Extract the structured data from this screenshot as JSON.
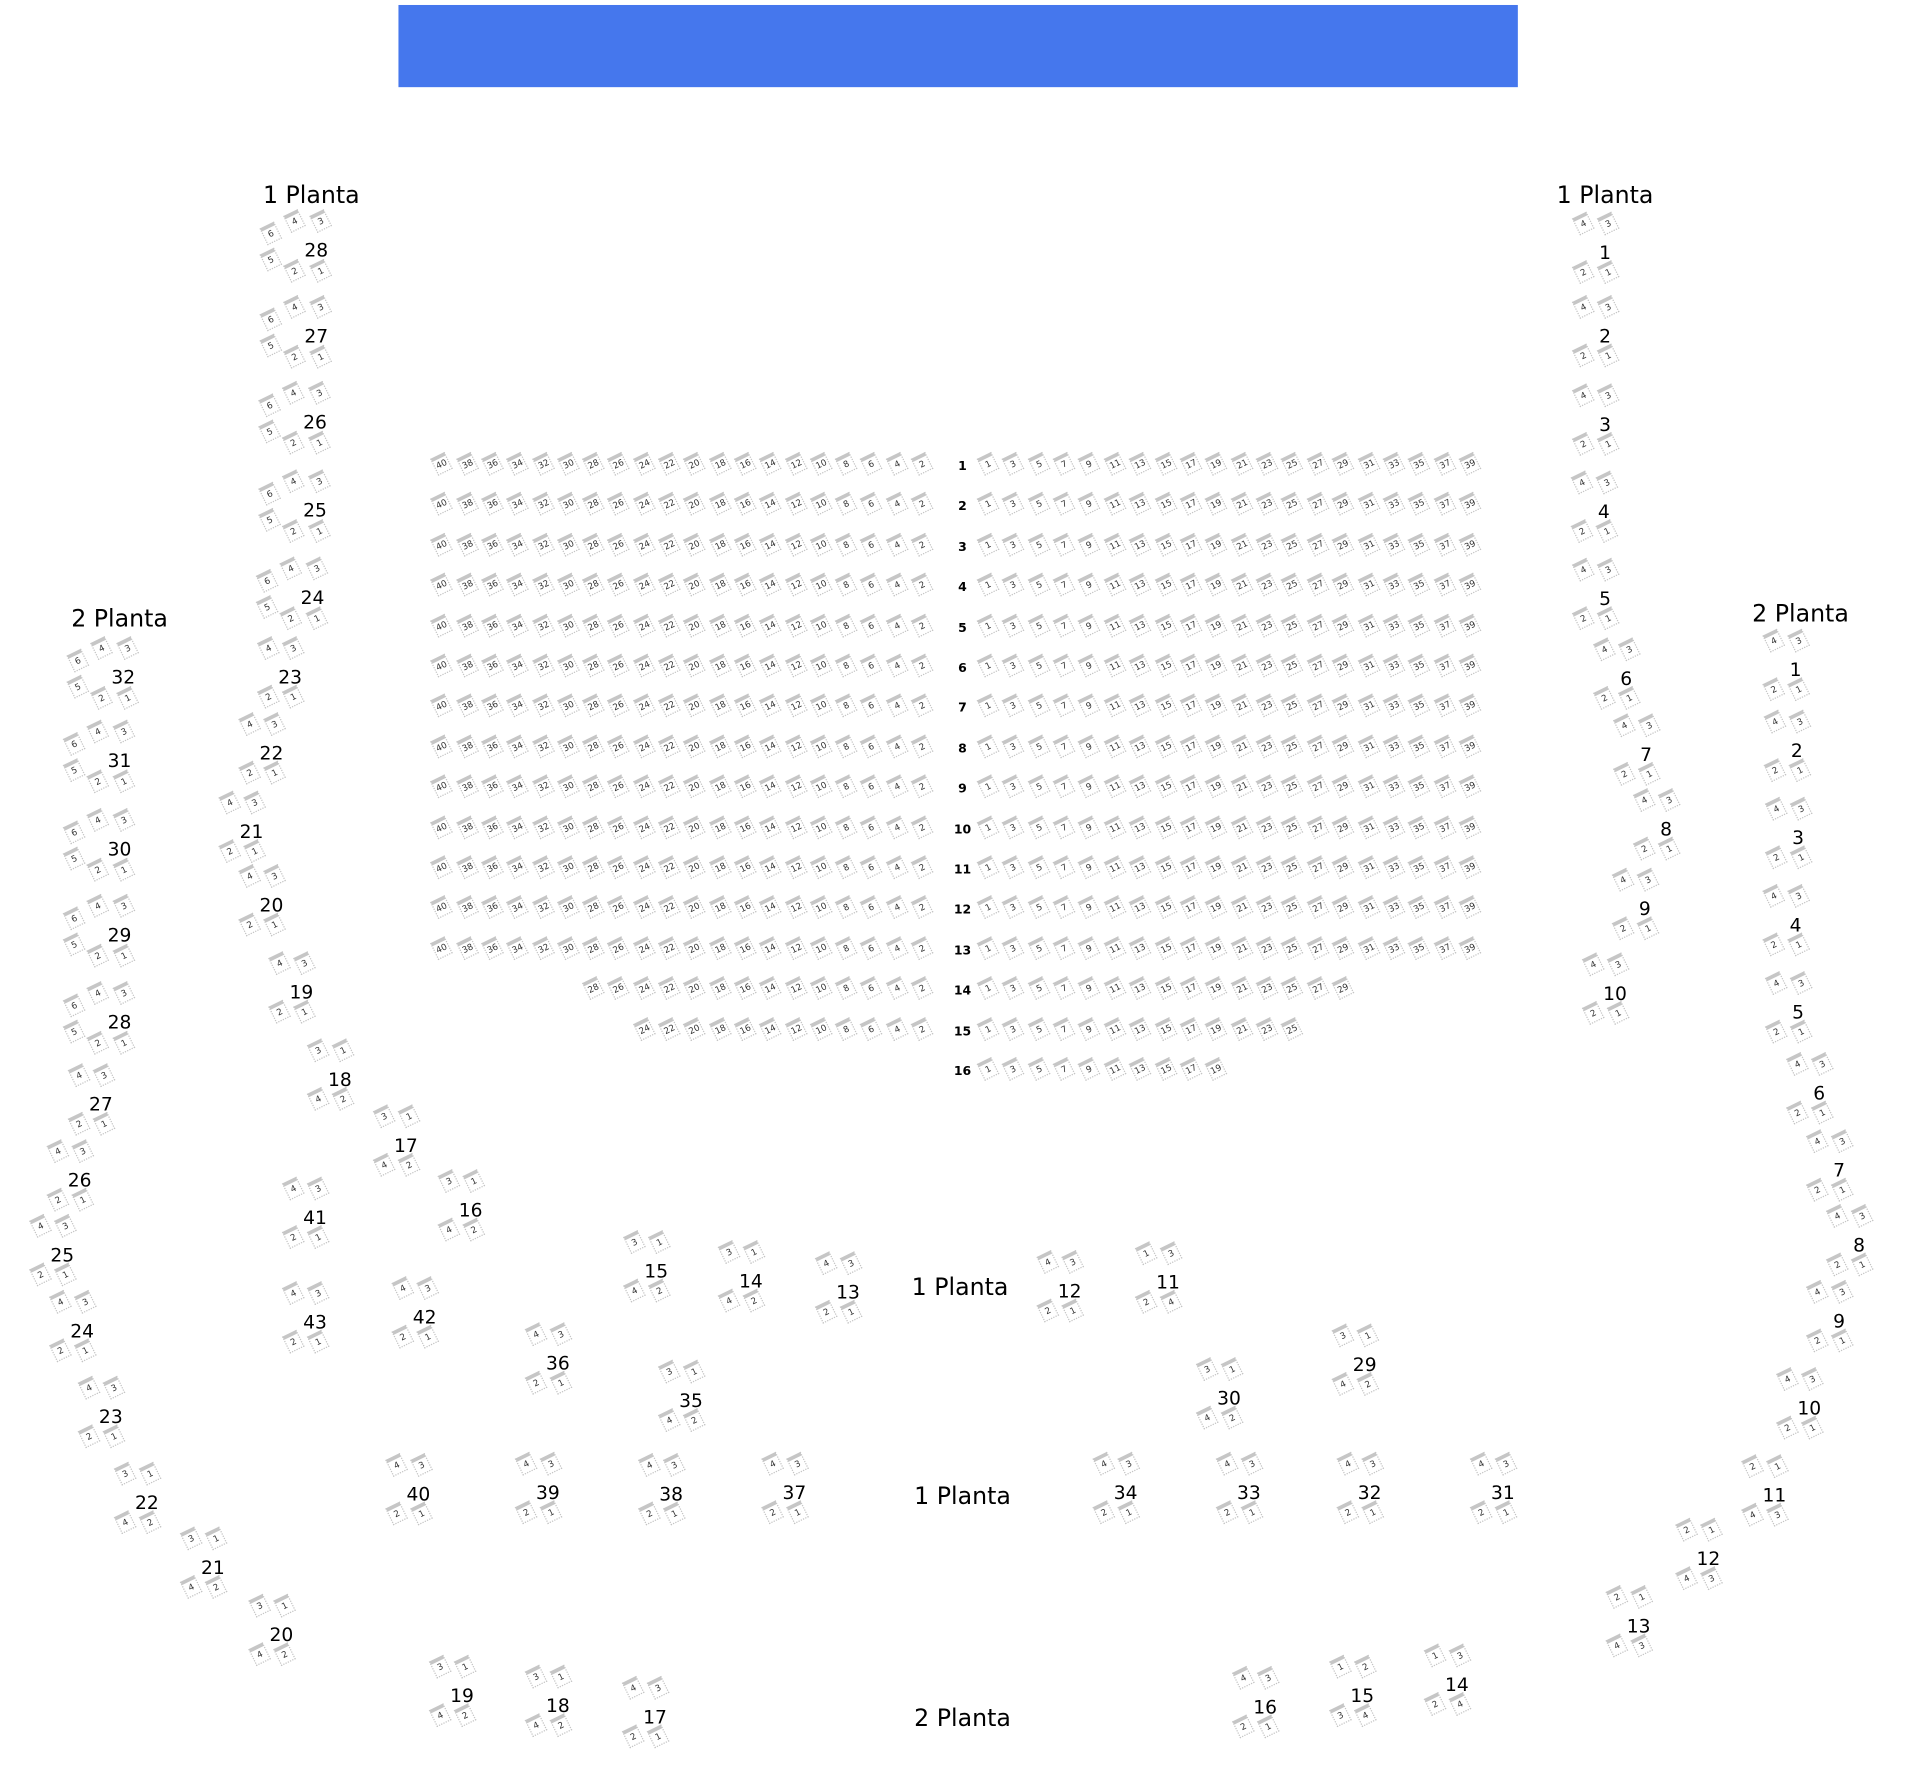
{
  "stage": {
    "color": "#4577ed"
  },
  "planta_labels": [
    "1 Planta",
    "1 Planta",
    "2 Planta",
    "2 Planta",
    "1 Planta",
    "1 Planta",
    "2 Planta"
  ],
  "orchestra": {
    "rows": [
      {
        "label": "1",
        "left": [
          "40",
          "38",
          "36",
          "34",
          "32",
          "30",
          "28",
          "26",
          "24",
          "22",
          "20",
          "18",
          "16",
          "14",
          "12",
          "10",
          "8",
          "6",
          "4",
          "2"
        ],
        "right": [
          "1",
          "3",
          "5",
          "7",
          "9",
          "11",
          "13",
          "15",
          "17",
          "19",
          "21",
          "23",
          "25",
          "27",
          "29",
          "31",
          "33",
          "35",
          "37",
          "39"
        ]
      },
      {
        "label": "2",
        "left": [
          "40",
          "38",
          "36",
          "34",
          "32",
          "30",
          "28",
          "26",
          "24",
          "22",
          "20",
          "18",
          "16",
          "14",
          "12",
          "10",
          "8",
          "6",
          "4",
          "2"
        ],
        "right": [
          "1",
          "3",
          "5",
          "7",
          "9",
          "11",
          "13",
          "15",
          "17",
          "19",
          "21",
          "23",
          "25",
          "27",
          "29",
          "31",
          "33",
          "35",
          "37",
          "39"
        ]
      },
      {
        "label": "3",
        "left": [
          "40",
          "38",
          "36",
          "34",
          "32",
          "30",
          "28",
          "26",
          "24",
          "22",
          "20",
          "18",
          "16",
          "14",
          "12",
          "10",
          "8",
          "6",
          "4",
          "2"
        ],
        "right": [
          "1",
          "3",
          "5",
          "7",
          "9",
          "11",
          "13",
          "15",
          "17",
          "19",
          "21",
          "23",
          "25",
          "27",
          "29",
          "31",
          "33",
          "35",
          "37",
          "39"
        ]
      },
      {
        "label": "4",
        "left": [
          "40",
          "38",
          "36",
          "34",
          "32",
          "30",
          "28",
          "26",
          "24",
          "22",
          "20",
          "18",
          "16",
          "14",
          "12",
          "10",
          "8",
          "6",
          "4",
          "2"
        ],
        "right": [
          "1",
          "3",
          "5",
          "7",
          "9",
          "11",
          "13",
          "15",
          "17",
          "19",
          "21",
          "23",
          "25",
          "27",
          "29",
          "31",
          "33",
          "35",
          "37",
          "39"
        ]
      },
      {
        "label": "5",
        "left": [
          "40",
          "38",
          "36",
          "34",
          "32",
          "30",
          "28",
          "26",
          "24",
          "22",
          "20",
          "18",
          "16",
          "14",
          "12",
          "10",
          "8",
          "6",
          "4",
          "2"
        ],
        "right": [
          "1",
          "3",
          "5",
          "7",
          "9",
          "11",
          "13",
          "15",
          "17",
          "19",
          "21",
          "23",
          "25",
          "27",
          "29",
          "31",
          "33",
          "35",
          "37",
          "39"
        ]
      },
      {
        "label": "6",
        "left": [
          "40",
          "38",
          "36",
          "34",
          "32",
          "30",
          "28",
          "26",
          "24",
          "22",
          "20",
          "18",
          "16",
          "14",
          "12",
          "10",
          "8",
          "6",
          "4",
          "2"
        ],
        "right": [
          "1",
          "3",
          "5",
          "7",
          "9",
          "11",
          "13",
          "15",
          "17",
          "19",
          "21",
          "23",
          "25",
          "27",
          "29",
          "31",
          "33",
          "35",
          "37",
          "39"
        ]
      },
      {
        "label": "7",
        "left": [
          "40",
          "38",
          "36",
          "34",
          "32",
          "30",
          "28",
          "26",
          "24",
          "22",
          "20",
          "18",
          "16",
          "14",
          "12",
          "10",
          "8",
          "6",
          "4",
          "2"
        ],
        "right": [
          "1",
          "3",
          "5",
          "7",
          "9",
          "11",
          "13",
          "15",
          "17",
          "19",
          "21",
          "23",
          "25",
          "27",
          "29",
          "31",
          "33",
          "35",
          "37",
          "39"
        ]
      },
      {
        "label": "8",
        "left": [
          "40",
          "38",
          "36",
          "34",
          "32",
          "30",
          "28",
          "26",
          "24",
          "22",
          "20",
          "18",
          "16",
          "14",
          "12",
          "10",
          "8",
          "6",
          "4",
          "2"
        ],
        "right": [
          "1",
          "3",
          "5",
          "7",
          "9",
          "11",
          "13",
          "15",
          "17",
          "19",
          "21",
          "23",
          "25",
          "27",
          "29",
          "31",
          "33",
          "35",
          "37",
          "39"
        ]
      },
      {
        "label": "9",
        "left": [
          "40",
          "38",
          "36",
          "34",
          "32",
          "30",
          "28",
          "26",
          "24",
          "22",
          "20",
          "18",
          "16",
          "14",
          "12",
          "10",
          "8",
          "6",
          "4",
          "2"
        ],
        "right": [
          "1",
          "3",
          "5",
          "7",
          "9",
          "11",
          "13",
          "15",
          "17",
          "19",
          "21",
          "23",
          "25",
          "27",
          "29",
          "31",
          "33",
          "35",
          "37",
          "39"
        ]
      },
      {
        "label": "10",
        "left": [
          "40",
          "38",
          "36",
          "34",
          "32",
          "30",
          "28",
          "26",
          "24",
          "22",
          "20",
          "18",
          "16",
          "14",
          "12",
          "10",
          "8",
          "6",
          "4",
          "2"
        ],
        "right": [
          "1",
          "3",
          "5",
          "7",
          "9",
          "11",
          "13",
          "15",
          "17",
          "19",
          "21",
          "23",
          "25",
          "27",
          "29",
          "31",
          "33",
          "35",
          "37",
          "39"
        ]
      },
      {
        "label": "11",
        "left": [
          "40",
          "38",
          "36",
          "34",
          "32",
          "30",
          "28",
          "26",
          "24",
          "22",
          "20",
          "18",
          "16",
          "14",
          "12",
          "10",
          "8",
          "6",
          "4",
          "2"
        ],
        "right": [
          "1",
          "3",
          "5",
          "7",
          "9",
          "11",
          "13",
          "15",
          "17",
          "19",
          "21",
          "23",
          "25",
          "27",
          "29",
          "31",
          "33",
          "35",
          "37",
          "39"
        ]
      },
      {
        "label": "12",
        "left": [
          "40",
          "38",
          "36",
          "34",
          "32",
          "30",
          "28",
          "26",
          "24",
          "22",
          "20",
          "18",
          "16",
          "14",
          "12",
          "10",
          "8",
          "6",
          "4",
          "2"
        ],
        "right": [
          "1",
          "3",
          "5",
          "7",
          "9",
          "11",
          "13",
          "15",
          "17",
          "19",
          "21",
          "23",
          "25",
          "27",
          "29",
          "31",
          "33",
          "35",
          "37",
          "39"
        ]
      },
      {
        "label": "13",
        "left": [
          "40",
          "38",
          "36",
          "34",
          "32",
          "30",
          "28",
          "26",
          "24",
          "22",
          "20",
          "18",
          "16",
          "14",
          "12",
          "10",
          "8",
          "6",
          "4",
          "2"
        ],
        "right": [
          "1",
          "3",
          "5",
          "7",
          "9",
          "11",
          "13",
          "15",
          "17",
          "19",
          "21",
          "23",
          "25",
          "27",
          "29",
          "31",
          "33",
          "35",
          "37",
          "39"
        ]
      },
      {
        "label": "14",
        "left": [
          "28",
          "26",
          "24",
          "22",
          "20",
          "18",
          "16",
          "14",
          "12",
          "10",
          "8",
          "6",
          "4",
          "2"
        ],
        "right": [
          "1",
          "3",
          "5",
          "7",
          "9",
          "11",
          "13",
          "15",
          "17",
          "19",
          "21",
          "23",
          "25",
          "27",
          "29"
        ]
      },
      {
        "label": "15",
        "left": [
          "24",
          "22",
          "20",
          "18",
          "16",
          "14",
          "12",
          "10",
          "8",
          "6",
          "4",
          "2"
        ],
        "right": [
          "1",
          "3",
          "5",
          "7",
          "9",
          "11",
          "13",
          "15",
          "17",
          "19",
          "21",
          "23",
          "25"
        ]
      },
      {
        "label": "16",
        "left": [],
        "right": [
          "1",
          "3",
          "5",
          "7",
          "9",
          "11",
          "13",
          "15",
          "17",
          "19"
        ]
      }
    ]
  },
  "boxes": [
    {
      "label": "28",
      "seats": [
        "6",
        "4",
        "3",
        "5",
        "2",
        "1"
      ]
    },
    {
      "label": "27",
      "seats": [
        "6",
        "4",
        "3",
        "5",
        "2",
        "1"
      ]
    },
    {
      "label": "26",
      "seats": [
        "6",
        "4",
        "3",
        "5",
        "2",
        "1"
      ]
    },
    {
      "label": "25",
      "seats": [
        "6",
        "4",
        "3",
        "5",
        "2",
        "1"
      ]
    },
    {
      "label": "24",
      "seats": [
        "6",
        "4",
        "3",
        "5",
        "2",
        "1"
      ]
    },
    {
      "label": "23",
      "seats": [
        "4",
        "3",
        "2",
        "1"
      ]
    },
    {
      "label": "22",
      "seats": [
        "4",
        "3",
        "2",
        "1"
      ]
    },
    {
      "label": "21",
      "seats": [
        "4",
        "3",
        "2",
        "1"
      ]
    },
    {
      "label": "20",
      "seats": [
        "4",
        "3",
        "2",
        "1"
      ]
    },
    {
      "label": "19",
      "seats": [
        "4",
        "3",
        "2",
        "1"
      ]
    },
    {
      "label": "18",
      "seats": [
        "3",
        "1",
        "4",
        "2"
      ]
    },
    {
      "label": "17",
      "seats": [
        "3",
        "1",
        "4",
        "2"
      ]
    },
    {
      "label": "16",
      "seats": [
        "3",
        "1",
        "4",
        "2"
      ]
    },
    {
      "label": "1",
      "seats": [
        "4",
        "3",
        "2",
        "1"
      ]
    },
    {
      "label": "2",
      "seats": [
        "4",
        "3",
        "2",
        "1"
      ]
    },
    {
      "label": "3",
      "seats": [
        "4",
        "3",
        "2",
        "1"
      ]
    },
    {
      "label": "4",
      "seats": [
        "4",
        "3",
        "2",
        "1"
      ]
    },
    {
      "label": "5",
      "seats": [
        "4",
        "3",
        "2",
        "1"
      ]
    },
    {
      "label": "6",
      "seats": [
        "4",
        "3",
        "2",
        "1"
      ]
    },
    {
      "label": "7",
      "seats": [
        "4",
        "3",
        "2",
        "1"
      ]
    },
    {
      "label": "8",
      "seats": [
        "4",
        "3",
        "2",
        "1"
      ]
    },
    {
      "label": "9",
      "seats": [
        "4",
        "3",
        "2",
        "1"
      ]
    },
    {
      "label": "10",
      "seats": [
        "4",
        "3",
        "2",
        "1"
      ]
    },
    {
      "label": "32",
      "seats": [
        "6",
        "4",
        "3",
        "5",
        "2",
        "1"
      ]
    },
    {
      "label": "31",
      "seats": [
        "6",
        "4",
        "3",
        "5",
        "2",
        "1"
      ]
    },
    {
      "label": "30",
      "seats": [
        "6",
        "4",
        "3",
        "5",
        "2",
        "1"
      ]
    },
    {
      "label": "29",
      "seats": [
        "6",
        "4",
        "3",
        "5",
        "2",
        "1"
      ]
    },
    {
      "label": "28",
      "seats": [
        "6",
        "4",
        "3",
        "5",
        "2",
        "1"
      ]
    },
    {
      "label": "27",
      "seats": [
        "4",
        "3",
        "2",
        "1"
      ]
    },
    {
      "label": "26",
      "seats": [
        "4",
        "3",
        "2",
        "1"
      ]
    },
    {
      "label": "25",
      "seats": [
        "4",
        "3",
        "2",
        "1"
      ]
    },
    {
      "label": "24",
      "seats": [
        "4",
        "3",
        "2",
        "1"
      ]
    },
    {
      "label": "23",
      "seats": [
        "4",
        "3",
        "2",
        "1"
      ]
    },
    {
      "label": "22",
      "seats": [
        "3",
        "1",
        "4",
        "2"
      ]
    },
    {
      "label": "21",
      "seats": [
        "3",
        "1",
        "4",
        "2"
      ]
    },
    {
      "label": "20",
      "seats": [
        "3",
        "1",
        "4",
        "2"
      ]
    },
    {
      "label": "1",
      "seats": [
        "4",
        "3",
        "2",
        "1"
      ]
    },
    {
      "label": "2",
      "seats": [
        "4",
        "3",
        "2",
        "1"
      ]
    },
    {
      "label": "3",
      "seats": [
        "4",
        "3",
        "2",
        "1"
      ]
    },
    {
      "label": "4",
      "seats": [
        "4",
        "3",
        "2",
        "1"
      ]
    },
    {
      "label": "5",
      "seats": [
        "4",
        "3",
        "2",
        "1"
      ]
    },
    {
      "label": "6",
      "seats": [
        "4",
        "3",
        "2",
        "1"
      ]
    },
    {
      "label": "7",
      "seats": [
        "4",
        "3",
        "2",
        "1"
      ]
    },
    {
      "label": "8",
      "seats": [
        "4",
        "3",
        "2",
        "1"
      ]
    },
    {
      "label": "9",
      "seats": [
        "4",
        "3",
        "2",
        "1"
      ]
    },
    {
      "label": "10",
      "seats": [
        "4",
        "3",
        "2",
        "1"
      ]
    },
    {
      "label": "11",
      "seats": [
        "2",
        "1",
        "4",
        "3"
      ]
    },
    {
      "label": "12",
      "seats": [
        "2",
        "1",
        "4",
        "3"
      ]
    },
    {
      "label": "13",
      "seats": [
        "2",
        "1",
        "4",
        "3"
      ]
    },
    {
      "label": "41",
      "seats": [
        "4",
        "3",
        "2",
        "1"
      ]
    },
    {
      "label": "43",
      "seats": [
        "4",
        "3",
        "2",
        "1"
      ]
    },
    {
      "label": "42",
      "seats": [
        "4",
        "3",
        "2",
        "1"
      ]
    },
    {
      "label": "15",
      "seats": [
        "3",
        "1",
        "4",
        "2"
      ]
    },
    {
      "label": "14",
      "seats": [
        "3",
        "1",
        "4",
        "2"
      ]
    },
    {
      "label": "13",
      "seats": [
        "4",
        "3",
        "2",
        "1"
      ]
    },
    {
      "label": "12",
      "seats": [
        "4",
        "3",
        "2",
        "1"
      ]
    },
    {
      "label": "11",
      "seats": [
        "1",
        "3",
        "2",
        "4"
      ]
    },
    {
      "label": "36",
      "seats": [
        "4",
        "3",
        "2",
        "1"
      ]
    },
    {
      "label": "35",
      "seats": [
        "3",
        "1",
        "4",
        "2"
      ]
    },
    {
      "label": "30",
      "seats": [
        "3",
        "1",
        "4",
        "2"
      ]
    },
    {
      "label": "29",
      "seats": [
        "3",
        "1",
        "4",
        "2"
      ]
    },
    {
      "label": "40",
      "seats": [
        "4",
        "3",
        "2",
        "1"
      ]
    },
    {
      "label": "39",
      "seats": [
        "4",
        "3",
        "2",
        "1"
      ]
    },
    {
      "label": "38",
      "seats": [
        "4",
        "3",
        "2",
        "1"
      ]
    },
    {
      "label": "37",
      "seats": [
        "4",
        "3",
        "2",
        "1"
      ]
    },
    {
      "label": "34",
      "seats": [
        "4",
        "3",
        "2",
        "1"
      ]
    },
    {
      "label": "33",
      "seats": [
        "4",
        "3",
        "2",
        "1"
      ]
    },
    {
      "label": "32",
      "seats": [
        "4",
        "3",
        "2",
        "1"
      ]
    },
    {
      "label": "31",
      "seats": [
        "4",
        "3",
        "2",
        "1"
      ]
    },
    {
      "label": "19",
      "seats": [
        "3",
        "1",
        "4",
        "2"
      ]
    },
    {
      "label": "18",
      "seats": [
        "3",
        "1",
        "4",
        "2"
      ]
    },
    {
      "label": "17",
      "seats": [
        "4",
        "3",
        "2",
        "1"
      ]
    },
    {
      "label": "16",
      "seats": [
        "4",
        "3",
        "2",
        "1"
      ]
    },
    {
      "label": "15",
      "seats": [
        "1",
        "2",
        "3",
        "4"
      ]
    },
    {
      "label": "14",
      "seats": [
        "1",
        "3",
        "2",
        "4"
      ]
    }
  ]
}
